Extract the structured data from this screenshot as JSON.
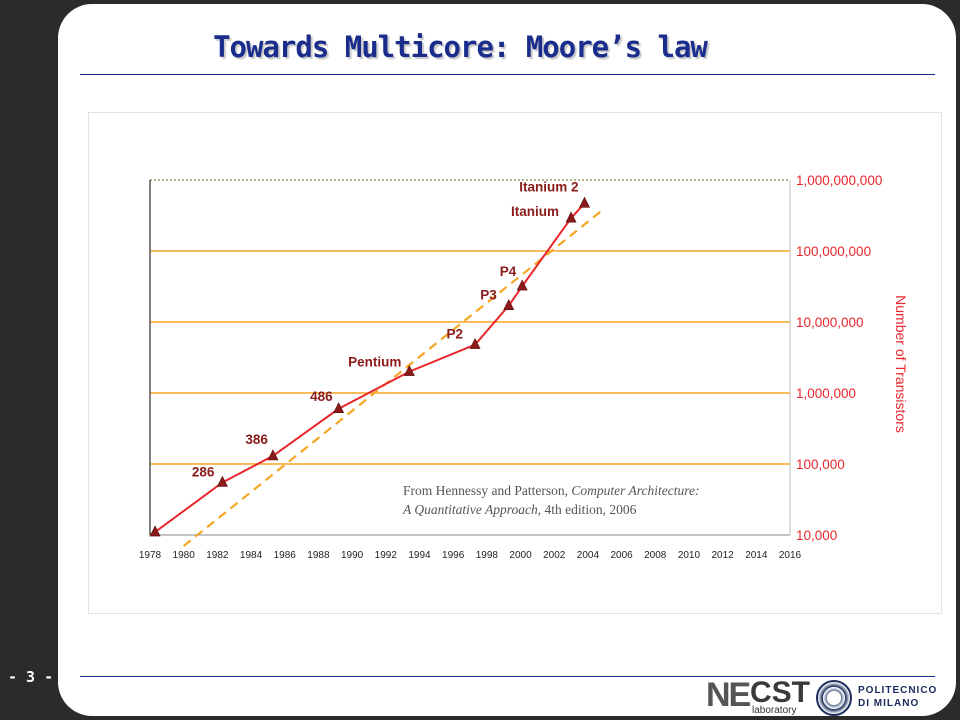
{
  "slide": {
    "title": "Towards Multicore: Moore’s law",
    "page_number": "- 3 -"
  },
  "logos": {
    "necst_ne": "NE",
    "necst_cst": "CST",
    "necst_sub": "laboratory",
    "polimi_line1": "POLITECNICO",
    "polimi_line2": "DI MILANO"
  },
  "colors": {
    "title": "#1a2c8c",
    "gridline": "#f5a623",
    "data_line": "#e8262c",
    "trend_line": "#f5a623",
    "axis_label": "#e8262c",
    "marker": "#8b1a1a"
  },
  "chart_data": {
    "type": "line",
    "title": "",
    "ylabel": "Number of Transistors",
    "xlabel": "",
    "y_scale": "log",
    "ylim": [
      10000,
      1000000000
    ],
    "xlim": [
      1978,
      2016
    ],
    "grid": true,
    "x_ticks": [
      "1978",
      "1980",
      "1982",
      "1984",
      "1986",
      "1988",
      "1990",
      "1992",
      "1994",
      "1996",
      "1998",
      "2000",
      "2002",
      "2004",
      "2006",
      "2008",
      "2010",
      "2012",
      "2014",
      "2016"
    ],
    "y_ticks": [
      "10,000",
      "100,000",
      "1,000,000",
      "10,000,000",
      "100,000,000",
      "1,000,000,000"
    ],
    "series": [
      {
        "points": [
          {
            "x": 1978.3,
            "y": 11000,
            "label": ""
          },
          {
            "x": 1982.3,
            "y": 55000,
            "label": "286"
          },
          {
            "x": 1985.3,
            "y": 130000,
            "label": "386"
          },
          {
            "x": 1989.2,
            "y": 600000,
            "label": "486"
          },
          {
            "x": 1993.4,
            "y": 2000000,
            "label": "Pentium"
          },
          {
            "x": 1997.3,
            "y": 4800000,
            "label": "P2"
          },
          {
            "x": 1999.3,
            "y": 17000000,
            "label": "P3"
          },
          {
            "x": 2000.1,
            "y": 32000000,
            "label": "P4"
          },
          {
            "x": 2003.0,
            "y": 290000000,
            "label": "Itanium"
          },
          {
            "x": 2003.8,
            "y": 470000000,
            "label": "Itanium 2"
          }
        ]
      }
    ],
    "trend": [
      {
        "x": 1980.0,
        "y": 7000
      },
      {
        "x": 2005.0,
        "y": 400000000
      }
    ],
    "annotation": {
      "source_prefix": "From Hennessy and Patterson, ",
      "book_title_1": "Computer Architecture:",
      "book_title_2": "A Quantitative Approach",
      "source_suffix": ", 4th edition, 2006"
    }
  }
}
